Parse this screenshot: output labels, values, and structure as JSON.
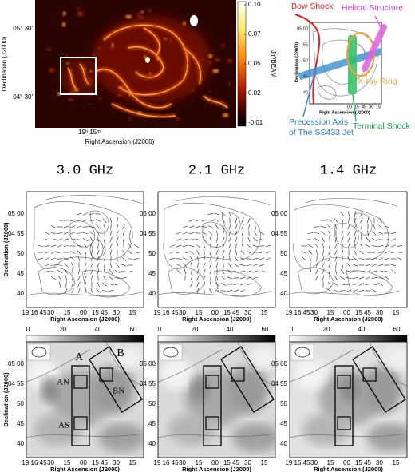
{
  "top_map": {
    "yticks": [
      "05° 30′",
      "04° 30′"
    ],
    "ylabel": "Declination (J2000)",
    "xtick": "19ʰ 15ᵐ",
    "xlabel": "Right Ascension (J2000)",
    "colorbar": {
      "label": "JY/BEAM",
      "ticks": [
        "0.10",
        "0.07",
        "0.05",
        "0.02",
        "-0.01"
      ]
    }
  },
  "schematic": {
    "annotations": {
      "bow_shock": "Bow Shock",
      "helical": "Helical Structure",
      "xray_ring": "X-ray Ring",
      "precession_axis": [
        "Precession Axis",
        "of The SS433 Jet"
      ],
      "terminal_shock": "Terminal Shock"
    },
    "yticks": [
      "05 00",
      "55",
      "50",
      "45",
      "40"
    ],
    "xticks": [
      "00",
      "15",
      "45",
      "30",
      "15"
    ],
    "ylabel": "Declination (J2000)",
    "xlabel": "Right Ascension (J2000)"
  },
  "panels": {
    "frequencies": [
      "3.0 GHz",
      "2.1 GHz",
      "1.4 GHz"
    ],
    "yticks": [
      "05 00",
      "04 55",
      "50",
      "45",
      "40"
    ],
    "xticks": [
      "19 16 45",
      "30",
      "15",
      "00",
      "15 45",
      "30",
      "15"
    ],
    "ylabel": "Declination (J2000)",
    "xlabel": "Right Ascension (J2000)",
    "colorbar_ticks": [
      "0",
      "20",
      "40",
      "60"
    ],
    "regions": [
      "A",
      "B",
      "AN",
      "AS",
      "BN"
    ]
  }
}
